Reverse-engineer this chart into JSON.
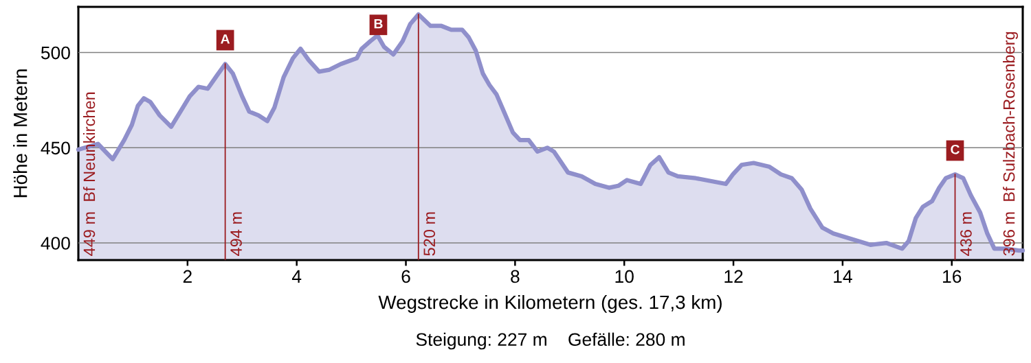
{
  "chart_data": {
    "type": "area",
    "xlabel": "Wegstrecke in Kilometern (ges. 17,3 km)",
    "ylabel": "Höhe in Metern",
    "x": [
      0,
      0.36,
      0.63,
      0.84,
      0.98,
      1.09,
      1.2,
      1.32,
      1.49,
      1.7,
      1.87,
      2.04,
      2.2,
      2.37,
      2.54,
      2.69,
      2.83,
      3.0,
      3.13,
      3.3,
      3.46,
      3.59,
      3.76,
      3.93,
      4.07,
      4.22,
      4.41,
      4.6,
      4.81,
      5.1,
      5.19,
      5.35,
      5.48,
      5.6,
      5.77,
      5.94,
      6.08,
      6.23,
      6.45,
      6.65,
      6.83,
      7.03,
      7.15,
      7.28,
      7.41,
      7.53,
      7.66,
      7.78,
      7.96,
      8.09,
      8.25,
      8.41,
      8.59,
      8.71,
      8.97,
      9.22,
      9.47,
      9.72,
      9.89,
      10.05,
      10.3,
      10.48,
      10.64,
      10.81,
      10.98,
      11.31,
      11.86,
      11.99,
      12.15,
      12.37,
      12.66,
      12.87,
      13.07,
      13.25,
      13.41,
      13.63,
      13.83,
      14.17,
      14.51,
      14.8,
      15.09,
      15.21,
      15.34,
      15.47,
      15.64,
      15.77,
      15.89,
      16.06,
      16.21,
      16.35,
      16.52,
      16.65,
      16.78,
      16.98,
      17.23,
      17.3
    ],
    "series": [
      {
        "color": "#8f8fcb",
        "values": [
          449,
          452,
          444,
          454,
          462,
          472,
          476,
          474,
          467,
          461,
          469,
          477,
          482,
          481,
          488,
          494,
          489,
          477,
          469,
          467,
          464,
          471,
          487,
          497,
          502,
          496,
          490,
          491,
          494,
          497,
          502,
          506,
          509,
          503,
          499,
          506,
          515,
          520,
          514,
          514,
          512,
          512,
          508,
          501,
          489,
          483,
          478,
          470,
          458,
          454,
          454,
          448,
          450,
          448,
          437,
          435,
          431,
          429,
          430,
          433,
          431,
          441,
          445,
          437,
          435,
          434,
          431,
          436,
          441,
          442,
          440,
          436,
          434,
          428,
          418,
          408,
          405,
          402,
          399,
          400,
          397,
          401,
          413,
          419,
          422,
          429,
          434,
          436,
          434,
          425,
          416,
          405,
          397,
          397,
          396,
          396
        ]
      }
    ],
    "xlim": [
      0,
      17.3
    ],
    "ylim": [
      391,
      524
    ],
    "xticks": [
      2,
      4,
      6,
      8,
      10,
      12,
      14,
      16
    ],
    "yticks": [
      400,
      450,
      500
    ],
    "grid": "y",
    "annotations": [
      {
        "text": "449 m  Bf Neunkirchen",
        "x": 0,
        "y": 449
      },
      {
        "text": "494 m",
        "x": 2.69,
        "y": 494
      },
      {
        "text": "A",
        "x": 2.69,
        "y": 494
      },
      {
        "text": "520 m",
        "x": 6.23,
        "y": 520
      },
      {
        "text": "B",
        "x": 6.23,
        "y": 520
      },
      {
        "text": "436 m",
        "x": 16.06,
        "y": 436
      },
      {
        "text": "C",
        "x": 16.06,
        "y": 436
      },
      {
        "text": "396 m  Bf Sulzbach-Rosenberg",
        "x": 17.3,
        "y": 396
      },
      "Steigung: 227 m    Gefälle: 280 m"
    ]
  }
}
